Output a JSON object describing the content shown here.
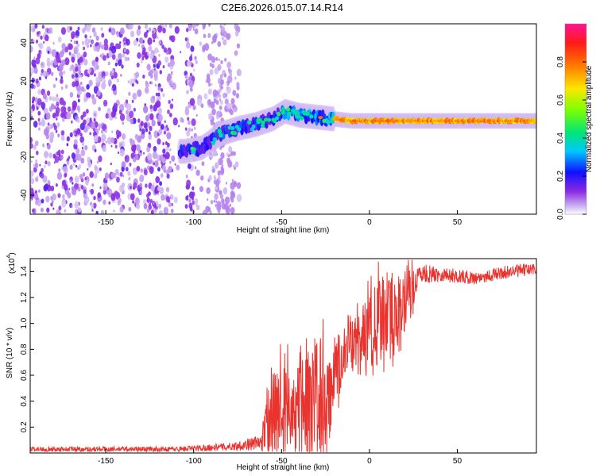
{
  "figure": {
    "title": "C2E6.2026.015.07.14.R14"
  },
  "chart_data": [
    {
      "type": "heatmap",
      "title": "C2E6.2026.015.07.14.R14",
      "xlabel": "Height of straight line (km)",
      "ylabel": "Frequency (Hz)",
      "xlim": [
        -193,
        95
      ],
      "ylim": [
        -50,
        50
      ],
      "x_ticks": [
        -150,
        -100,
        -50,
        0,
        50
      ],
      "x_tick_labels": [
        "-150",
        "-100",
        "-50",
        "0",
        "50"
      ],
      "y_ticks": [
        -40,
        -20,
        0,
        20,
        40
      ],
      "y_tick_labels": [
        "-40",
        "-20",
        "0",
        "20",
        "40"
      ],
      "colorbar": {
        "label": "Normalized spectral amplitude",
        "range": [
          0,
          1
        ],
        "ticks": [
          0.0,
          0.2,
          0.4,
          0.6,
          0.8
        ],
        "tick_labels": [
          "0.0",
          "0.2",
          "0.4",
          "0.6",
          "0.8"
        ]
      },
      "ridge": {
        "description_points": [
          {
            "x": -105,
            "y": -17
          },
          {
            "x": -95,
            "y": -15
          },
          {
            "x": -85,
            "y": -8
          },
          {
            "x": -75,
            "y": -5
          },
          {
            "x": -65,
            "y": -3
          },
          {
            "x": -55,
            "y": 0
          },
          {
            "x": -48,
            "y": 4
          },
          {
            "x": -40,
            "y": 2
          },
          {
            "x": -30,
            "y": 1
          },
          {
            "x": -20,
            "y": 0
          },
          {
            "x": -10,
            "y": -1
          },
          {
            "x": 0,
            "y": -1
          },
          {
            "x": 30,
            "y": -1
          },
          {
            "x": 60,
            "y": -1
          },
          {
            "x": 95,
            "y": -1
          }
        ],
        "noise_region_x": [
          -193,
          -78
        ],
        "gap_region_x": [
          -112,
          -104
        ]
      }
    },
    {
      "type": "line",
      "xlabel": "Height of straight line (km)",
      "ylabel": "SNR (10 * v/v)",
      "y_scale_label": "(x10",
      "y_scale_exponent": "4",
      "y_scale_close": ")",
      "xlim": [
        -193,
        95
      ],
      "ylim": [
        0,
        1.5
      ],
      "x_ticks": [
        -150,
        -100,
        -50,
        0,
        50
      ],
      "x_tick_labels": [
        "-150",
        "-100",
        "-50",
        "0",
        "50"
      ],
      "y_ticks": [
        0.2,
        0.4,
        0.6,
        0.8,
        1.0,
        1.2,
        1.4
      ],
      "y_tick_labels": [
        "0.2",
        "0.4",
        "0.6",
        "0.8",
        "1.0",
        "1.2",
        "1.4"
      ],
      "color": "#e8332e",
      "envelope": [
        {
          "x": -193,
          "base": 0.03,
          "amp": 0.02
        },
        {
          "x": -110,
          "base": 0.03,
          "amp": 0.02
        },
        {
          "x": -78,
          "base": 0.05,
          "amp": 0.03
        },
        {
          "x": -62,
          "base": 0.08,
          "amp": 0.06
        },
        {
          "x": -55,
          "base": 0.3,
          "amp": 0.35
        },
        {
          "x": -45,
          "base": 0.35,
          "amp": 0.35
        },
        {
          "x": -35,
          "base": 0.35,
          "amp": 0.4
        },
        {
          "x": -30,
          "base": 0.55,
          "amp": 0.55
        },
        {
          "x": -25,
          "base": 0.25,
          "amp": 0.4
        },
        {
          "x": -20,
          "base": 0.55,
          "amp": 0.3
        },
        {
          "x": -15,
          "base": 0.75,
          "amp": 0.2
        },
        {
          "x": -8,
          "base": 0.85,
          "amp": 0.2
        },
        {
          "x": 0,
          "base": 0.95,
          "amp": 0.3
        },
        {
          "x": 10,
          "base": 1.05,
          "amp": 0.35
        },
        {
          "x": 20,
          "base": 1.1,
          "amp": 0.3
        },
        {
          "x": 28,
          "base": 1.38,
          "amp": 0.08
        },
        {
          "x": 40,
          "base": 1.38,
          "amp": 0.06
        },
        {
          "x": 60,
          "base": 1.35,
          "amp": 0.05
        },
        {
          "x": 80,
          "base": 1.4,
          "amp": 0.05
        },
        {
          "x": 95,
          "base": 1.42,
          "amp": 0.05
        }
      ]
    }
  ]
}
